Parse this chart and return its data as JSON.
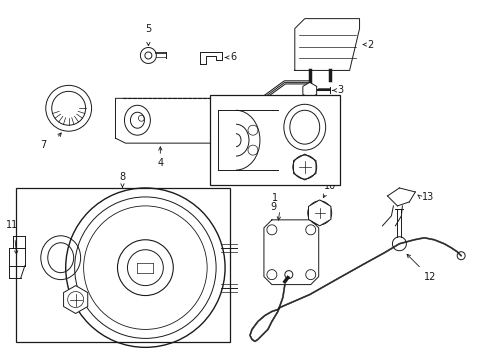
{
  "bg_color": "#ffffff",
  "line_color": "#1a1a1a",
  "fig_w": 4.9,
  "fig_h": 3.6,
  "dpi": 100
}
